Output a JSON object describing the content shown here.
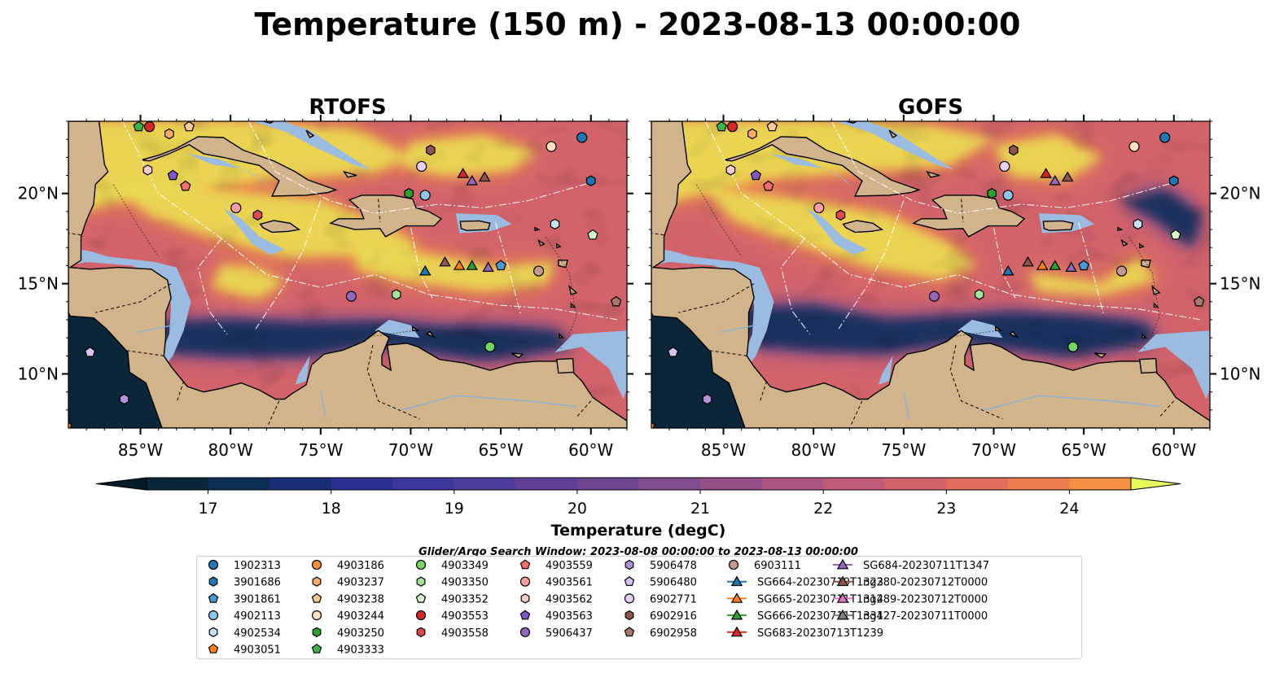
{
  "title": "Temperature (150 m) - 2023-08-13 00:00:00",
  "panels": [
    {
      "name": "RTOFS",
      "variant": "rtofs"
    },
    {
      "name": "GOFS",
      "variant": "gofs"
    }
  ],
  "map_extent": {
    "lon": [
      -89.0,
      -58.0
    ],
    "lat": [
      7.0,
      24.0
    ]
  },
  "lon_ticks": [
    {
      "value": -85,
      "label": "85°W"
    },
    {
      "value": -80,
      "label": "80°W"
    },
    {
      "value": -75,
      "label": "75°W"
    },
    {
      "value": -70,
      "label": "70°W"
    },
    {
      "value": -65,
      "label": "65°W"
    },
    {
      "value": -60,
      "label": "60°W"
    }
  ],
  "lat_ticks": [
    {
      "value": 20,
      "label": "20°N"
    },
    {
      "value": 15,
      "label": "15°N"
    },
    {
      "value": 10,
      "label": "10°N"
    }
  ],
  "colorbar": {
    "label": "Temperature (degC)",
    "min": 16.5,
    "max": 24.5,
    "step": 0.5,
    "tick_values": [
      17,
      18,
      19,
      20,
      21,
      22,
      23,
      24
    ],
    "tick_labels": [
      "17",
      "18",
      "19",
      "20",
      "21",
      "22",
      "23",
      "24"
    ],
    "colors": [
      "#09263a",
      "#0d2f55",
      "#1a2e77",
      "#2a3192",
      "#3e389d",
      "#4f3d9b",
      "#603f96",
      "#6f4592",
      "#814c8e",
      "#965088",
      "#ad5682",
      "#c05c7a",
      "#d2636b",
      "#e26f5e",
      "#ec7e4f",
      "#f48f43",
      "#f8a13b",
      "#f9b43e",
      "#f5c649",
      "#e8dd56"
    ],
    "under_color": "#061b2a",
    "over_color": "#e6f95a"
  },
  "search_window": "Glider/Argo Search Window: 2023-08-08 00:00:00 to 2023-08-13 00:00:00",
  "legend": [
    {
      "label": "1902313",
      "marker": "circle",
      "color": "#1f77b4"
    },
    {
      "label": "3901686",
      "marker": "hexagon",
      "color": "#1f77b4"
    },
    {
      "label": "3901861",
      "marker": "pentagon",
      "color": "#4c9ad4"
    },
    {
      "label": "4902113",
      "marker": "circle",
      "color": "#8ec5ec"
    },
    {
      "label": "4902534",
      "marker": "hexagon",
      "color": "#c6e4f7"
    },
    {
      "label": "4903051",
      "marker": "pentagon",
      "color": "#ff7f0e"
    },
    {
      "label": "4903186",
      "marker": "circle",
      "color": "#f5913a"
    },
    {
      "label": "4903237",
      "marker": "hexagon",
      "color": "#ffad66"
    },
    {
      "label": "4903238",
      "marker": "pentagon",
      "color": "#ffc898"
    },
    {
      "label": "4903244",
      "marker": "circle",
      "color": "#ffe1c2"
    },
    {
      "label": "4903250",
      "marker": "hexagon",
      "color": "#2ca02c"
    },
    {
      "label": "4903333",
      "marker": "pentagon",
      "color": "#3cb44b"
    },
    {
      "label": "4903349",
      "marker": "circle",
      "color": "#76d464"
    },
    {
      "label": "4903350",
      "marker": "hexagon",
      "color": "#a4e39a"
    },
    {
      "label": "4903352",
      "marker": "pentagon",
      "color": "#d4f7c8"
    },
    {
      "label": "4903553",
      "marker": "circle",
      "color": "#d62728"
    },
    {
      "label": "4903558",
      "marker": "hexagon",
      "color": "#e04a4a"
    },
    {
      "label": "4903559",
      "marker": "pentagon",
      "color": "#f26c6c"
    },
    {
      "label": "4903561",
      "marker": "circle",
      "color": "#ff9e9e"
    },
    {
      "label": "4903562",
      "marker": "hexagon",
      "color": "#ffcccc"
    },
    {
      "label": "4903563",
      "marker": "pentagon",
      "color": "#7e57c2"
    },
    {
      "label": "5906437",
      "marker": "circle",
      "color": "#9467bd"
    },
    {
      "label": "5906478",
      "marker": "hexagon",
      "color": "#b192d8"
    },
    {
      "label": "5906480",
      "marker": "pentagon",
      "color": "#d7c3ef"
    },
    {
      "label": "6902771",
      "marker": "circle",
      "color": "#e6cff7"
    },
    {
      "label": "6902916",
      "marker": "hexagon",
      "color": "#8c564b"
    },
    {
      "label": "6902958",
      "marker": "pentagon",
      "color": "#a9776b"
    },
    {
      "label": "6903111",
      "marker": "circle",
      "color": "#c49a8f"
    },
    {
      "label": "SG664-20230719T1323",
      "marker": "triangle-line",
      "color": "#1f77b4"
    },
    {
      "label": "SG665-20230711T1314",
      "marker": "triangle-line",
      "color": "#ff7f0e"
    },
    {
      "label": "SG666-20230711T1331",
      "marker": "triangle-line",
      "color": "#2ca02c"
    },
    {
      "label": "SG683-20230713T1239",
      "marker": "triangle-line",
      "color": "#d62728"
    },
    {
      "label": "SG684-20230711T1347",
      "marker": "triangle-line",
      "color": "#9467bd"
    },
    {
      "label": "ng280-20230712T0000",
      "marker": "triangle-line",
      "color": "#8c564b"
    },
    {
      "label": "ng289-20230712T0000",
      "marker": "triangle-line",
      "color": "#e377c2"
    },
    {
      "label": "ng427-20230711T0000",
      "marker": "triangle-line",
      "color": "#7f7f7f"
    }
  ],
  "observations": [
    {
      "id": "4903333",
      "lon": -85.1,
      "lat": 23.7
    },
    {
      "id": "4903553",
      "lon": -84.5,
      "lat": 23.7
    },
    {
      "id": "4903237",
      "lon": -83.4,
      "lat": 23.3
    },
    {
      "id": "4903238",
      "lon": -82.3,
      "lat": 23.7
    },
    {
      "id": "4903562",
      "lon": -84.6,
      "lat": 21.3
    },
    {
      "id": "4903563",
      "lon": -83.2,
      "lat": 21.0
    },
    {
      "id": "4903559",
      "lon": -82.5,
      "lat": 20.4
    },
    {
      "id": "4903561",
      "lon": -79.7,
      "lat": 19.2
    },
    {
      "id": "4903558",
      "lon": -78.5,
      "lat": 18.8
    },
    {
      "id": "6902916",
      "lon": -68.9,
      "lat": 22.4
    },
    {
      "id": "6902771",
      "lon": -69.4,
      "lat": 21.5
    },
    {
      "id": "4903244",
      "lon": -62.2,
      "lat": 22.6
    },
    {
      "id": "1902313",
      "lon": -60.5,
      "lat": 23.1
    },
    {
      "id": "3901686",
      "lon": -60.0,
      "lat": 20.7
    },
    {
      "id": "4903250",
      "lon": -70.1,
      "lat": 20.0
    },
    {
      "id": "4902113",
      "lon": -69.2,
      "lat": 19.9
    },
    {
      "id": "4902534",
      "lon": -62.0,
      "lat": 18.3
    },
    {
      "id": "4903352",
      "lon": -59.9,
      "lat": 17.7
    },
    {
      "id": "3901861",
      "lon": -65.0,
      "lat": 16.0
    },
    {
      "id": "6903111",
      "lon": -62.9,
      "lat": 15.7
    },
    {
      "id": "5906437",
      "lon": -73.3,
      "lat": 14.3
    },
    {
      "id": "4903350",
      "lon": -70.8,
      "lat": 14.4
    },
    {
      "id": "6902958",
      "lon": -58.6,
      "lat": 14.0
    },
    {
      "id": "4903349",
      "lon": -65.6,
      "lat": 11.5
    },
    {
      "id": "5906480",
      "lon": -87.8,
      "lat": 11.2
    },
    {
      "id": "5906478",
      "lon": -85.9,
      "lat": 8.6
    },
    {
      "id": "4903051",
      "lon": -89.1,
      "lat": 7.1
    },
    {
      "id": "SG683-20230713T1239",
      "lon": -67.1,
      "lat": 21.1
    },
    {
      "id": "SG684-20230711T1347",
      "lon": -66.6,
      "lat": 20.7
    },
    {
      "id": "ng280-20230712T0000",
      "lon": -65.9,
      "lat": 20.9
    },
    {
      "id": "SG664-20230719T1323",
      "lon": -69.2,
      "lat": 15.7
    },
    {
      "id": "ng280-20230712T0000",
      "lon": -68.1,
      "lat": 16.2
    },
    {
      "id": "SG665-20230711T1314",
      "lon": -67.3,
      "lat": 16.0
    },
    {
      "id": "SG666-20230711T1331",
      "lon": -66.6,
      "lat": 16.0
    },
    {
      "id": "SG684-20230711T1347",
      "lon": -65.7,
      "lat": 15.9
    }
  ],
  "icons": [
    "map-panel",
    "colorbar",
    "legend-marker"
  ]
}
